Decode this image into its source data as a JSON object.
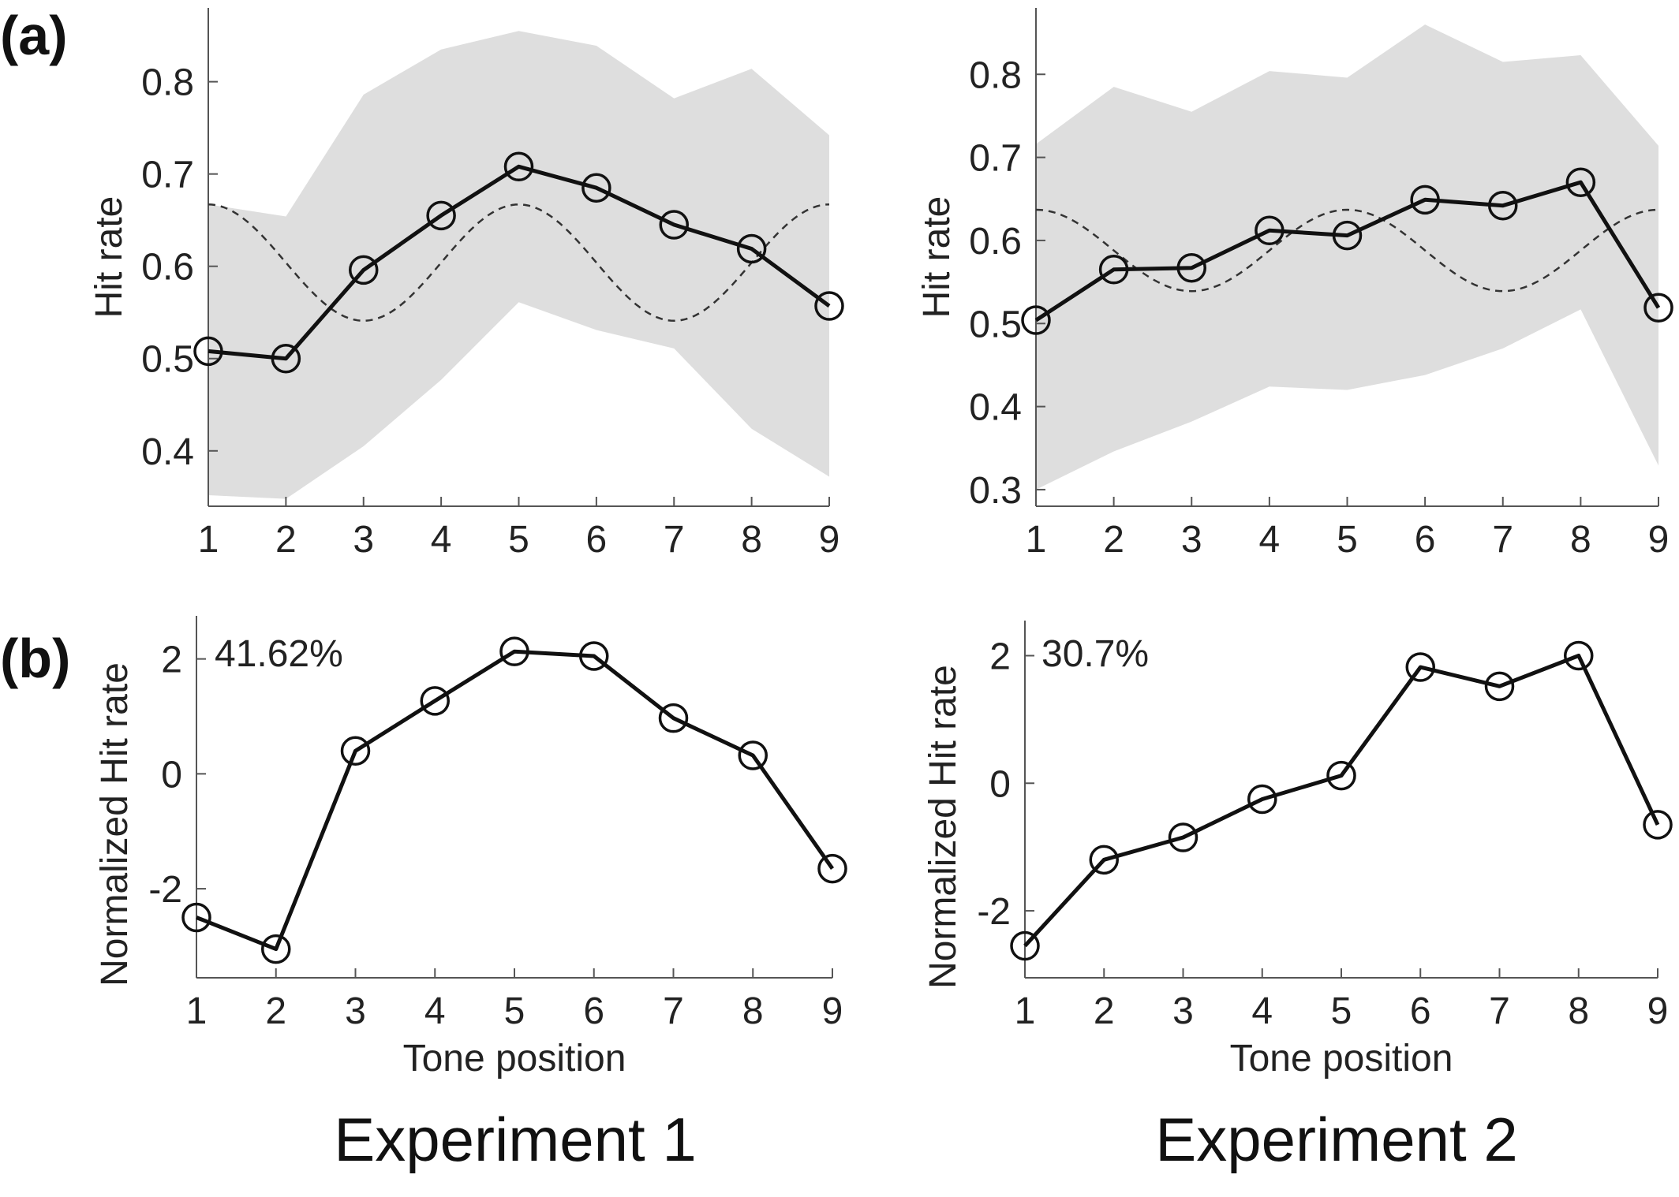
{
  "panel_labels": {
    "a": "(a)",
    "b": "(b)"
  },
  "experiment_titles": [
    "Experiment 1",
    "Experiment 2"
  ],
  "colors": {
    "band": "#dedede",
    "line": "#111111",
    "dashed": "#333333",
    "axis": "#555555",
    "text": "#222222"
  },
  "chart_data": [
    {
      "id": "a1",
      "type": "line",
      "title": "",
      "xlabel": "",
      "ylabel": "Hit rate",
      "xlim": [
        1,
        9
      ],
      "ylim": [
        0.34,
        0.88
      ],
      "xticks": [
        1,
        2,
        3,
        4,
        5,
        6,
        7,
        8,
        9
      ],
      "yticks": [
        0.4,
        0.5,
        0.6,
        0.7,
        0.8
      ],
      "x": [
        1,
        2,
        3,
        4,
        5,
        6,
        7,
        8,
        9
      ],
      "values": [
        0.508,
        0.5,
        0.596,
        0.655,
        0.708,
        0.685,
        0.645,
        0.619,
        0.557
      ],
      "band_upper": [
        0.667,
        0.654,
        0.786,
        0.835,
        0.855,
        0.839,
        0.782,
        0.814,
        0.742
      ],
      "band_lower": [
        0.352,
        0.348,
        0.405,
        0.477,
        0.561,
        0.531,
        0.511,
        0.424,
        0.372
      ],
      "cosine_fit": {
        "mean": 0.604,
        "amplitude": 0.063,
        "period": 4
      },
      "annotation": ""
    },
    {
      "id": "a2",
      "type": "line",
      "title": "",
      "xlabel": "",
      "ylabel": "Hit rate",
      "xlim": [
        1,
        9
      ],
      "ylim": [
        0.28,
        0.88
      ],
      "xticks": [
        1,
        2,
        3,
        4,
        5,
        6,
        7,
        8,
        9
      ],
      "yticks": [
        0.3,
        0.4,
        0.5,
        0.6,
        0.7,
        0.8
      ],
      "x": [
        1,
        2,
        3,
        4,
        5,
        6,
        7,
        8,
        9
      ],
      "values": [
        0.504,
        0.565,
        0.567,
        0.612,
        0.606,
        0.649,
        0.642,
        0.67,
        0.519
      ],
      "band_upper": [
        0.716,
        0.785,
        0.755,
        0.804,
        0.796,
        0.86,
        0.815,
        0.823,
        0.714
      ],
      "band_lower": [
        0.3,
        0.346,
        0.382,
        0.424,
        0.42,
        0.438,
        0.47,
        0.517,
        0.329
      ],
      "cosine_fit": {
        "mean": 0.588,
        "amplitude": 0.049,
        "period": 4
      },
      "annotation": ""
    },
    {
      "id": "b1",
      "type": "line",
      "title": "",
      "xlabel": "Tone position",
      "ylabel": "Normalized Hit rate",
      "xlim": [
        1,
        9
      ],
      "ylim": [
        -3.55,
        2.75
      ],
      "xticks": [
        1,
        2,
        3,
        4,
        5,
        6,
        7,
        8,
        9
      ],
      "yticks": [
        -2,
        0,
        2
      ],
      "ytick_labels": [
        "-2",
        "0",
        "2"
      ],
      "x": [
        1,
        2,
        3,
        4,
        5,
        6,
        7,
        8,
        9
      ],
      "values": [
        -2.5,
        -3.05,
        0.4,
        1.27,
        2.13,
        2.05,
        0.97,
        0.32,
        -1.65
      ],
      "annotation": "41.62%"
    },
    {
      "id": "b2",
      "type": "line",
      "title": "",
      "xlabel": "Tone position",
      "ylabel": "Normalized Hit rate",
      "xlim": [
        1,
        9
      ],
      "ylim": [
        -3.05,
        2.55
      ],
      "xticks": [
        1,
        2,
        3,
        4,
        5,
        6,
        7,
        8,
        9
      ],
      "yticks": [
        -2,
        0,
        2
      ],
      "ytick_labels": [
        "-2",
        "0",
        "2"
      ],
      "x": [
        1,
        2,
        3,
        4,
        5,
        6,
        7,
        8,
        9
      ],
      "values": [
        -2.55,
        -1.2,
        -0.85,
        -0.25,
        0.12,
        1.82,
        1.52,
        2.0,
        -0.65
      ],
      "annotation": "30.7%"
    }
  ]
}
